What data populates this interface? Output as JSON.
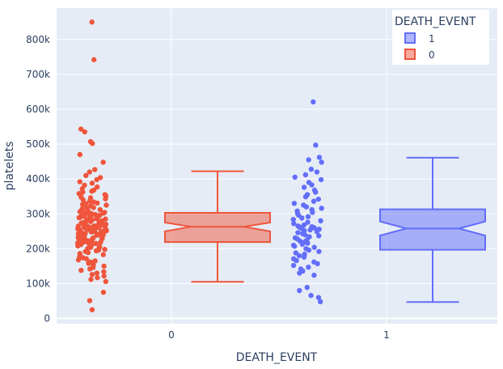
{
  "chart_data": {
    "type": "box",
    "xlabel": "DEATH_EVENT",
    "ylabel": "platelets",
    "ylim": [
      -15000,
      890000
    ],
    "yticks": [
      0,
      100000,
      200000,
      300000,
      400000,
      500000,
      600000,
      700000,
      800000
    ],
    "ytick_labels": [
      "0",
      "100k",
      "200k",
      "300k",
      "400k",
      "500k",
      "600k",
      "700k",
      "800k"
    ],
    "categories": [
      "0",
      "1"
    ],
    "grid": true,
    "legend": {
      "title": "DEATH_EVENT",
      "placement": "top-right",
      "order": [
        "1",
        "0"
      ]
    },
    "series": [
      {
        "name": "0",
        "color": "#ef553b",
        "category": "0",
        "box": {
          "min": 105000,
          "q1": 219000,
          "median": 263000,
          "q3": 303000,
          "max": 422000,
          "notch_low": 250000,
          "notch_high": 275000
        },
        "points": [
          850000,
          742000,
          543000,
          535000,
          507000,
          502000,
          470000,
          448000,
          427000,
          420000,
          410000,
          404000,
          398000,
          392000,
          388000,
          382000,
          377000,
          372000,
          368000,
          365000,
          362000,
          358000,
          355000,
          351000,
          348000,
          346000,
          343000,
          340000,
          337000,
          334000,
          331000,
          329000,
          327000,
          325000,
          323000,
          320000,
          318000,
          316000,
          314000,
          312000,
          310000,
          308000,
          306000,
          304000,
          303000,
          302000,
          301000,
          300000,
          298000,
          297000,
          296000,
          295000,
          294000,
          293000,
          292000,
          290000,
          289000,
          288000,
          287000,
          286000,
          285000,
          284000,
          283000,
          282000,
          281000,
          280000,
          279000,
          278000,
          277000,
          276000,
          275000,
          274000,
          273000,
          272000,
          271000,
          270000,
          269000,
          268000,
          267000,
          266000,
          265000,
          265000,
          264000,
          263000,
          263000,
          262000,
          261000,
          260000,
          259000,
          258000,
          257000,
          256000,
          255000,
          254000,
          253000,
          252000,
          251000,
          250000,
          249000,
          248000,
          247000,
          246000,
          245000,
          244000,
          243000,
          242000,
          241000,
          240000,
          239000,
          238000,
          237000,
          236000,
          235000,
          234000,
          233000,
          232000,
          231000,
          230000,
          229000,
          228000,
          227000,
          226000,
          225000,
          224000,
          223000,
          222000,
          221000,
          220000,
          219000,
          218000,
          217000,
          216000,
          215000,
          214000,
          213000,
          212000,
          211000,
          210000,
          208000,
          206000,
          204000,
          202000,
          200000,
          198000,
          196000,
          194000,
          192000,
          189000,
          186000,
          183000,
          180000,
          177000,
          174000,
          171000,
          168000,
          165000,
          162000,
          158000,
          154000,
          150000,
          146000,
          142000,
          138000,
          134000,
          130000,
          126000,
          122000,
          117000,
          112000,
          106000,
          75000,
          51000,
          25000
        ]
      },
      {
        "name": "1",
        "color": "#636efa",
        "category": "1",
        "box": {
          "min": 47000,
          "q1": 197000,
          "median": 258000,
          "q3": 313000,
          "max": 461000,
          "notch_low": 238000,
          "notch_high": 278000
        },
        "points": [
          621000,
          497000,
          462000,
          455000,
          448000,
          428000,
          420000,
          412000,
          405000,
          398000,
          390000,
          383000,
          376000,
          368000,
          362000,
          355000,
          349000,
          342000,
          336000,
          330000,
          325000,
          320000,
          316000,
          312000,
          308000,
          304000,
          300000,
          296000,
          292000,
          288000,
          284000,
          280000,
          276000,
          272000,
          268000,
          265000,
          263000,
          262000,
          260000,
          258000,
          256000,
          254000,
          252000,
          249000,
          246000,
          243000,
          240000,
          237000,
          234000,
          231000,
          228000,
          225000,
          222000,
          219000,
          216000,
          213000,
          210000,
          207000,
          204000,
          200000,
          196000,
          192000,
          188000,
          184000,
          180000,
          176000,
          171000,
          166000,
          162000,
          157000,
          152000,
          147000,
          142000,
          136000,
          130000,
          124000,
          89000,
          80000,
          66000,
          60000,
          48000
        ]
      }
    ]
  }
}
